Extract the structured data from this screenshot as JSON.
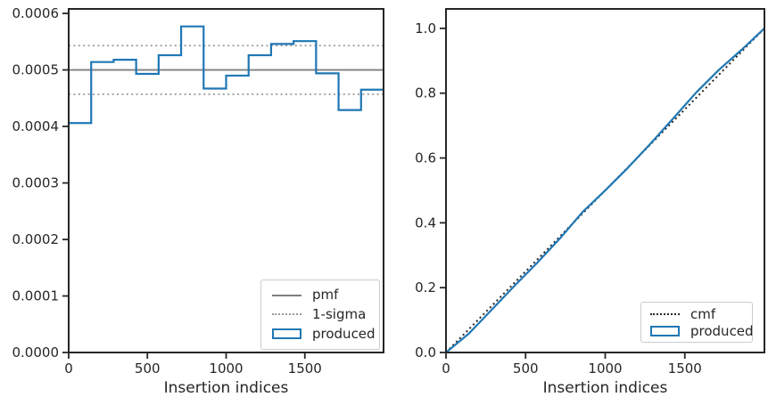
{
  "colors": {
    "blue": "#1f77b4",
    "gray": "#7f7f7f",
    "light_gray": "#9a9a9a",
    "ink": "#262626",
    "legend_border": "#cccccc",
    "background": "#ffffff"
  },
  "chart_data": [
    {
      "type": "step-histogram",
      "title": "",
      "xlabel": "Insertion indices",
      "ylabel": "",
      "xlim": [
        0,
        2000
      ],
      "ylim": [
        0,
        0.000608
      ],
      "xticks": [
        0,
        500,
        1000,
        1500
      ],
      "xtick_labels": [
        "0",
        "500",
        "1000",
        "1500"
      ],
      "yticks": [
        0,
        0.0001,
        0.0002,
        0.0003,
        0.0004,
        0.0005,
        0.0006
      ],
      "ytick_labels": [
        "0.0000",
        "0.0001",
        "0.0002",
        "0.0003",
        "0.0004",
        "0.0005",
        "0.0006"
      ],
      "grid": false,
      "pmf_value": 0.0005,
      "sigma_upper": 0.000543,
      "sigma_lower": 0.000457,
      "bin_edges": [
        0,
        142.9,
        285.7,
        428.6,
        571.4,
        714.3,
        857.1,
        1000,
        1142.9,
        1285.7,
        1428.6,
        1571.4,
        1714.3,
        1857.1,
        2000
      ],
      "bin_values": [
        0.000406,
        0.000514,
        0.000518,
        0.000493,
        0.000526,
        0.000577,
        0.000467,
        0.00049,
        0.000526,
        0.000546,
        0.000551,
        0.000494,
        0.000429,
        0.000465
      ],
      "legend": [
        {
          "label": "pmf",
          "sample": "solid-gray-line"
        },
        {
          "label": "1-sigma",
          "sample": "dotted-gray-line"
        },
        {
          "label": "produced",
          "sample": "blue-rect-outline"
        }
      ],
      "legend_position": "lower right"
    },
    {
      "type": "line",
      "title": "",
      "xlabel": "Insertion indices",
      "ylabel": "",
      "xlim": [
        0,
        2000
      ],
      "ylim": [
        0,
        1.06
      ],
      "xticks": [
        0,
        500,
        1000,
        1500
      ],
      "xtick_labels": [
        "0",
        "500",
        "1000",
        "1500"
      ],
      "yticks": [
        0,
        0.2,
        0.4,
        0.6,
        0.8,
        1.0
      ],
      "ytick_labels": [
        "0.0",
        "0.2",
        "0.4",
        "0.6",
        "0.8",
        "1.0"
      ],
      "grid": false,
      "cmf_line": {
        "x": [
          0,
          2000
        ],
        "y": [
          0,
          1
        ]
      },
      "produced_points": {
        "x": [
          0,
          142.9,
          285.7,
          428.6,
          571.4,
          714.3,
          857.1,
          1000,
          1142.9,
          1285.7,
          1428.6,
          1571.4,
          1714.3,
          1857.1,
          2000
        ],
        "y": [
          0,
          0.058,
          0.131,
          0.205,
          0.276,
          0.351,
          0.433,
          0.5,
          0.57,
          0.645,
          0.723,
          0.802,
          0.872,
          0.934,
          1.0
        ]
      },
      "legend": [
        {
          "label": "cmf",
          "sample": "dotted-black-line"
        },
        {
          "label": "produced",
          "sample": "blue-rect-outline"
        }
      ],
      "legend_position": "lower right"
    }
  ]
}
